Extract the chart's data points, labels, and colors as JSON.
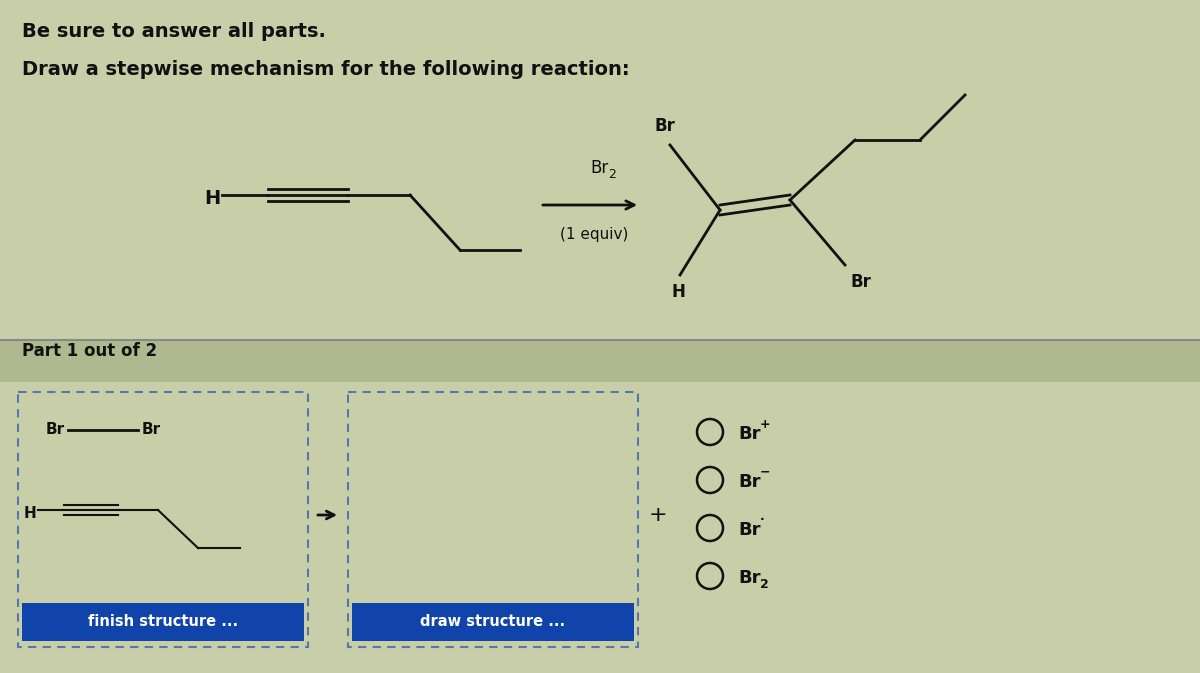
{
  "bg_color": "#c8cfa8",
  "title1": "Be sure to answer all parts.",
  "title2": "Draw a stepwise mechanism for the following reaction:",
  "part_label": "Part 1 out of 2",
  "reagent_label": "Br2",
  "equiv_label": "(1 equiv)",
  "finish_btn": "finish structure ...",
  "draw_btn": "draw structure ...",
  "plus_sign": "+",
  "text_color": "#111111",
  "box_border_color": "#5577aa",
  "btn_color": "#1144aa",
  "btn_text_color": "#ffffff",
  "divider_color": "#888888"
}
